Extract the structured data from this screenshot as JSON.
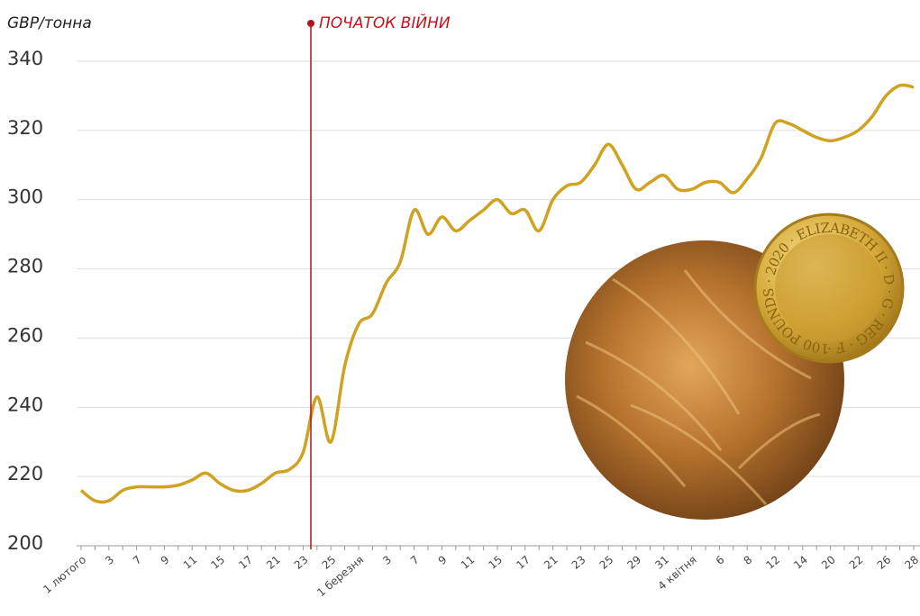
{
  "chart_data": {
    "type": "line",
    "y_label": "GBP/тонна",
    "annotation": "ПОЧАТОК ВІЙНИ",
    "coin_inscription": "100 POUNDS · 2020 · ELIZABETH II · D · G · REG · F · D ·",
    "categories": [
      "1 лютого",
      null,
      "3",
      null,
      "7",
      null,
      "9",
      null,
      "11",
      null,
      "15",
      null,
      "17",
      null,
      "21",
      null,
      "23",
      null,
      "25",
      null,
      "1 березня",
      null,
      "3",
      null,
      "7",
      null,
      "9",
      null,
      "11",
      null,
      "15",
      null,
      "17",
      null,
      "21",
      null,
      "23",
      null,
      "25",
      null,
      "29",
      null,
      "31",
      null,
      "4 квітня",
      null,
      "6",
      null,
      "8",
      null,
      "12",
      null,
      "14",
      null,
      "20",
      null,
      "22",
      null,
      "26",
      null,
      "28"
    ],
    "series": [
      {
        "name": "GBP/тонна",
        "color": "#cfa21f",
        "values": [
          216,
          213,
          213,
          216,
          217,
          217,
          217,
          217.5,
          219,
          221,
          218,
          216,
          216,
          218,
          221,
          222,
          227,
          243,
          230,
          252,
          264,
          267,
          276,
          282,
          297,
          290,
          295,
          291,
          294,
          297,
          300,
          296,
          297,
          291,
          300,
          304,
          305,
          310,
          316,
          310,
          303,
          305,
          307,
          303,
          303,
          305,
          305,
          302,
          306,
          312,
          322,
          322,
          320,
          318,
          317,
          318,
          320,
          324,
          330,
          333,
          332.5
        ]
      }
    ],
    "ylim": [
      200,
      340
    ],
    "yticks": [
      200,
      220,
      240,
      260,
      280,
      300,
      320,
      340
    ],
    "grid": true
  }
}
